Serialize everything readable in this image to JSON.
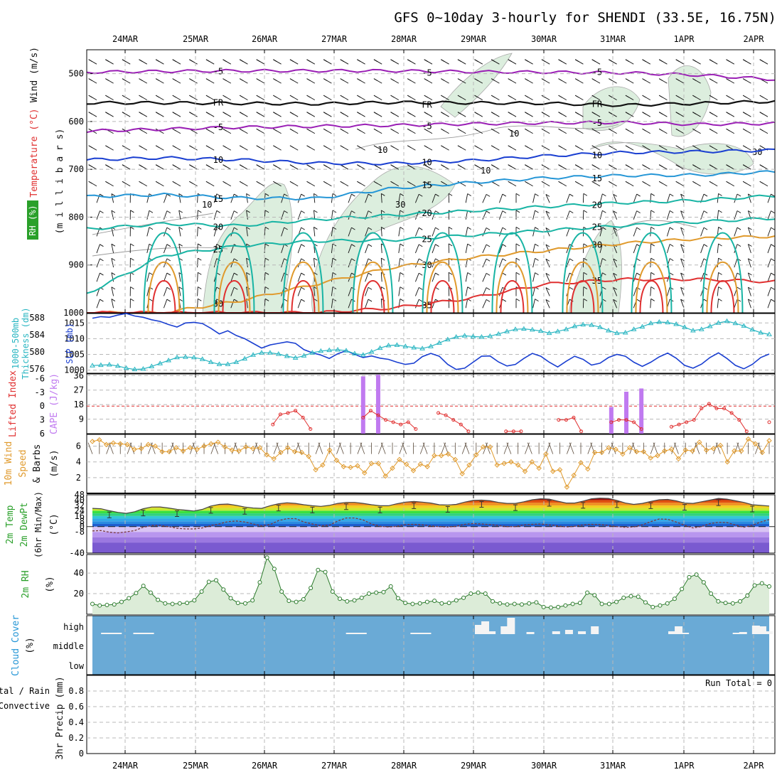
{
  "title": "GFS 0~10day 3-hourly for SHENDI (33.5E, 16.75N)",
  "colors": {
    "purple": "#9a1fb5",
    "blue": "#1a3fd1",
    "lightblue": "#2596d6",
    "teal": "#18b4a4",
    "orange": "#e09a2c",
    "red": "#e03030",
    "green": "#2aa02a",
    "cyan": "#2ab6c2",
    "cloud": "#6aaad6",
    "cape": "#c07af0",
    "gray": "#9a9a9a"
  },
  "chart_data": [
    {
      "id": "upper_air",
      "type": "contour",
      "x_dates": [
        "24MAR",
        "25MAR",
        "26MAR",
        "27MAR",
        "28MAR",
        "29MAR",
        "30MAR",
        "31MAR",
        "1APR",
        "2APR"
      ],
      "ylabel_parts": [
        "Wind (m/s)",
        "Temperature (°C)",
        "RH (%)",
        "(m i l l i b a r s)"
      ],
      "y_ticks": [
        500,
        600,
        700,
        800,
        900,
        1000
      ],
      "ylim": [
        450,
        1000
      ],
      "temperature_contours": [
        {
          "value": -5,
          "label": "-5",
          "levels_mb": [
            497,
            495,
            494,
            494,
            494,
            496,
            497,
            498,
            503,
            512
          ]
        },
        {
          "value": 0,
          "label": "FR",
          "levels_mb": [
            561,
            561,
            562,
            563,
            560,
            561,
            562,
            566,
            562,
            558
          ]
        },
        {
          "value": -5,
          "label": "-5",
          "levels_mb": [
            620,
            616,
            612,
            610,
            608,
            605,
            603,
            602,
            606,
            604
          ]
        },
        {
          "value": 10,
          "label": "10",
          "levels_mb": [
            680,
            676,
            680,
            687,
            688,
            682,
            672,
            665,
            663,
            660
          ]
        },
        {
          "value": 15,
          "label": "15",
          "levels_mb": [
            757,
            753,
            760,
            761,
            740,
            728,
            718,
            713,
            712,
            705
          ]
        },
        {
          "value": 20,
          "label": "20",
          "levels_mb": [
            825,
            814,
            818,
            805,
            796,
            787,
            778,
            770,
            765,
            755
          ]
        },
        {
          "value": 25,
          "label": "25",
          "levels_mb": [
            960,
            880,
            860,
            850,
            848,
            838,
            828,
            818,
            810,
            802
          ]
        },
        {
          "value": 30,
          "label": "30",
          "levels_mb": [
            1000,
            1000,
            975,
            940,
            905,
            885,
            870,
            855,
            845,
            840
          ]
        },
        {
          "value": 35,
          "label": "35",
          "levels_mb": [
            1000,
            1000,
            1000,
            1000,
            990,
            970,
            940,
            930,
            930,
            935
          ]
        }
      ],
      "rh_labels": [
        "10",
        "10",
        "30",
        "10",
        "10",
        "30"
      ]
    },
    {
      "id": "thickness_slp",
      "type": "line",
      "ylabel_parts": [
        "1000-500mb",
        "Thickness (dm)",
        "SLP (mb)"
      ],
      "left_ticks": [
        576,
        580,
        584,
        588
      ],
      "left_lim": [
        575,
        589
      ],
      "right_ticks": [
        1000,
        1005,
        1010,
        1015
      ],
      "right_lim": [
        999,
        1018
      ],
      "series": [
        {
          "name": "SLP",
          "values": [
            1016.5,
            1017.0,
            1016.8,
            1017.5,
            1018.0,
            1017.2,
            1016.8,
            1016.0,
            1015.5,
            1014.5,
            1013.7,
            1015.0,
            1015.2,
            1014.8,
            1013.3,
            1011.5,
            1012.5,
            1011.0,
            1010.0,
            1008.5,
            1007.0,
            1008.0,
            1008.5,
            1009.0,
            1008.5,
            1006.5,
            1005.5,
            1004.8,
            1003.7,
            1005.2,
            1006.2,
            1005.0,
            1004.0,
            1004.5,
            1003.8,
            1003.4,
            1002.5,
            1001.8,
            1002.2,
            1004.3,
            1005.3,
            1004.4,
            1001.8,
            1000.2,
            1000.6,
            1002.5,
            1004.4,
            1004.5,
            1002.6,
            1001.3,
            1001.8,
            1003.7,
            1005.3,
            1004.4,
            1002.5,
            1001.0,
            1002.8,
            1004.4,
            1003.4,
            1001.6,
            1002.2,
            1004.0,
            1005.0,
            1004.4,
            1002.5,
            1001.2,
            1002.5,
            1004.2,
            1005.4,
            1003.8,
            1001.5,
            1000.6,
            1001.9,
            1004.0,
            1005.5,
            1003.7,
            1001.5,
            1000.4,
            1001.8,
            1004.0,
            1005.1
          ]
        },
        {
          "name": "Thickness",
          "values": [
            576.8,
            576.9,
            577.0,
            576.7,
            576.2,
            575.9,
            576.0,
            576.6,
            577.3,
            578.0,
            578.7,
            578.8,
            578.7,
            578.3,
            577.6,
            577.1,
            577.1,
            577.6,
            578.4,
            579.3,
            579.8,
            579.8,
            579.5,
            579.0,
            578.6,
            579.1,
            579.8,
            580.2,
            580.4,
            580.5,
            580.3,
            579.6,
            579.3,
            580.0,
            580.9,
            581.5,
            581.6,
            581.3,
            581.0,
            580.8,
            581.3,
            582.1,
            582.9,
            583.5,
            583.8,
            583.6,
            583.5,
            583.7,
            584.2,
            584.8,
            585.3,
            585.4,
            585.2,
            584.9,
            584.4,
            584.8,
            585.3,
            586.0,
            586.4,
            586.3,
            585.8,
            585.0,
            584.4,
            584.5,
            585.3,
            585.9,
            586.7,
            587.0,
            586.9,
            586.5,
            585.8,
            585.0,
            585.3,
            586.0,
            586.8,
            587.2,
            586.7,
            586.1,
            585.2,
            584.5,
            584.1
          ]
        }
      ]
    },
    {
      "id": "cape_li",
      "type": "bar+line",
      "ylabel_parts": [
        "Lifted Index",
        "CAPE (J/kg)"
      ],
      "left_ticks": [
        "-6",
        "-3",
        "0",
        "3",
        "6"
      ],
      "left_values": [
        -6,
        -3,
        0,
        3,
        6
      ],
      "right_ticks": [
        9,
        18,
        27,
        36
      ],
      "cape_lim": [
        0,
        37
      ],
      "cape_bars": [
        {
          "step": 36,
          "value": 35.5
        },
        {
          "step": 38,
          "value": 36.5
        },
        {
          "step": 69,
          "value": 16.5
        },
        {
          "step": 71,
          "value": 26.0
        },
        {
          "step": 73,
          "value": 28.0
        }
      ],
      "lifted_index": [
        null,
        null,
        null,
        null,
        null,
        null,
        null,
        null,
        null,
        null,
        null,
        null,
        null,
        null,
        null,
        null,
        null,
        null,
        null,
        null,
        null,
        null,
        null,
        null,
        4.0,
        1.8,
        1.5,
        1.0,
        2.5,
        5.0,
        null,
        null,
        null,
        null,
        null,
        null,
        2.5,
        1.0,
        2.0,
        3.0,
        3.5,
        4.0,
        3.5,
        5.0,
        null,
        null,
        1.5,
        2.0,
        3.0,
        4.0,
        5.5,
        null,
        null,
        null,
        null,
        5.5,
        5.5,
        5.5,
        null,
        null,
        null,
        null,
        3.0,
        3.0,
        2.5,
        5.5,
        null,
        null,
        null,
        3.5,
        3.0,
        3.0,
        3.5,
        5.0,
        null,
        null,
        null,
        4.5,
        4.0,
        3.5,
        3.0,
        0.5,
        -0.5,
        0.5,
        0.5,
        1.5,
        3.0,
        5.5,
        null,
        null,
        3.5
      ]
    },
    {
      "id": "wind10m",
      "type": "line",
      "ylabel_parts": [
        "10m Wind",
        "Speed",
        "& Barbs",
        "(m/s)"
      ],
      "y_ticks": [
        2,
        4,
        6
      ],
      "ylim": [
        0,
        7.5
      ],
      "series": [
        {
          "name": "speed",
          "values": [
            6.6,
            6.8,
            6.2,
            6.4,
            6.3,
            6.2,
            5.6,
            5.7,
            6.2,
            6.0,
            5.3,
            5.3,
            5.8,
            5.4,
            5.8,
            5.6,
            6.0,
            6.3,
            6.5,
            5.9,
            5.5,
            5.4,
            5.9,
            5.7,
            5.8,
            4.9,
            4.4,
            5.2,
            5.8,
            5.3,
            5.2,
            4.7,
            3.0,
            3.6,
            5.5,
            4.2,
            3.4,
            3.3,
            3.5,
            2.6,
            3.8,
            3.8,
            2.2,
            3.2,
            4.3,
            3.7,
            2.9,
            3.7,
            3.4,
            4.8,
            4.8,
            5.0,
            4.3,
            2.5,
            3.6,
            4.9,
            5.9,
            5.9,
            3.6,
            3.8,
            4.0,
            3.6,
            2.8,
            4.0,
            3.2,
            5.0,
            2.8,
            3.0,
            0.8,
            2.3,
            3.9,
            3.1,
            5.2,
            5.2,
            5.8,
            5.6,
            5.0,
            5.8,
            5.3,
            5.3,
            4.5,
            4.8,
            5.4,
            5.6,
            4.4,
            5.5,
            5.4,
            6.5,
            5.5,
            5.7,
            6.1,
            4.0,
            5.4,
            5.4,
            6.9,
            6.3,
            5.2,
            6.7
          ]
        }
      ]
    },
    {
      "id": "temp2m",
      "type": "area+line",
      "ylabel_parts": [
        "2m Temp",
        "2m DewPt",
        "(6hr Min/Max)",
        "(°C)"
      ],
      "y_ticks": [
        "-40",
        "-8",
        "0",
        "8",
        "16",
        "24",
        "32",
        "40",
        "48"
      ],
      "ylim": [
        -40,
        48
      ],
      "series": [
        {
          "name": "temp",
          "values": [
            27.5,
            27.0,
            24.0,
            21.5,
            20.0,
            22.5,
            27.0,
            29.5,
            29.7,
            28.0,
            26.0,
            24.8,
            23.5,
            26.0,
            31.0,
            33.5,
            34.0,
            32.0,
            29.5,
            28.0,
            27.5,
            31.5,
            34.5,
            36.0,
            35.0,
            33.0,
            31.5,
            30.5,
            32.0,
            35.0,
            36.5,
            36.5,
            35.0,
            33.0,
            31.5,
            31.5,
            34.5,
            37.0,
            38.0,
            37.0,
            35.5,
            33.0,
            32.5,
            33.5,
            37.0,
            39.5,
            40.0,
            39.0,
            36.5,
            35.0,
            35.0,
            37.5,
            40.5,
            42.0,
            41.5,
            38.5,
            35.5,
            35.5,
            38.5,
            42.0,
            43.0,
            42.5,
            39.5,
            35.5,
            33.5,
            35.0,
            38.0,
            40.5,
            41.0,
            39.0,
            35.5,
            35.0,
            37.5,
            40.0,
            42.5,
            41.5,
            39.0,
            36.5,
            33.0,
            32.0,
            31.0
          ]
        },
        {
          "name": "dewpoint",
          "values": [
            -6.5,
            -6.0,
            -8.5,
            -9.5,
            -8.0,
            -6.0,
            -1.0,
            1.5,
            1.5,
            0.0,
            -2.5,
            -3.5,
            -3.5,
            -2.0,
            1.5,
            4.0,
            7.5,
            8.5,
            7.0,
            4.0,
            1.0,
            3.0,
            9.0,
            12.0,
            12.0,
            7.0,
            4.0,
            1.0,
            2.0,
            8.5,
            13.0,
            13.0,
            10.0,
            4.0,
            0.5,
            -0.5,
            0.5,
            3.0,
            3.5,
            2.5,
            1.0,
            0.0,
            -0.5,
            0.5,
            3.5,
            4.5,
            4.0,
            3.0,
            1.5,
            0.0,
            0.0,
            2.5,
            3.5,
            4.0,
            2.5,
            1.0,
            -0.5,
            0.5,
            2.5,
            3.5,
            3.0,
            1.5,
            0.0,
            -1.0,
            -0.5,
            2.5,
            7.5,
            11.5,
            11.0,
            7.0,
            2.0,
            -2.0,
            0.0,
            4.5,
            6.5,
            6.0,
            2.5,
            -1.0,
            2.0,
            7.0,
            10.5
          ]
        }
      ]
    },
    {
      "id": "rh2m",
      "type": "area+line",
      "ylabel_parts": [
        "2m RH",
        "(%)"
      ],
      "y_ticks": [
        20,
        40
      ],
      "ylim": [
        0,
        58
      ],
      "series": [
        {
          "name": "rh",
          "values": [
            10.0,
            8.5,
            9.0,
            9.5,
            12.0,
            15.5,
            20.5,
            27.5,
            21.0,
            14.0,
            10.5,
            10.0,
            10.5,
            11.0,
            13.5,
            22.0,
            31.5,
            33.0,
            24.0,
            15.5,
            11.0,
            10.5,
            13.5,
            31.0,
            55.0,
            44.0,
            22.0,
            13.0,
            12.0,
            14.5,
            25.5,
            43.0,
            41.0,
            22.0,
            15.0,
            12.5,
            13.5,
            16.0,
            20.0,
            21.0,
            21.5,
            27.0,
            15.5,
            11.0,
            10.0,
            10.5,
            12.0,
            13.0,
            10.5,
            11.0,
            13.5,
            16.0,
            20.0,
            21.0,
            20.0,
            12.5,
            10.5,
            9.5,
            10.0,
            9.5,
            10.5,
            11.5,
            7.0,
            6.5,
            7.0,
            8.5,
            10.0,
            11.0,
            21.0,
            18.5,
            10.0,
            10.0,
            12.0,
            16.0,
            17.5,
            17.0,
            11.5,
            7.0,
            8.5,
            10.5,
            15.0,
            24.5,
            36.0,
            38.5,
            31.0,
            20.0,
            12.5,
            11.0,
            10.5,
            12.5,
            18.0,
            28.0,
            30.0,
            27.0
          ]
        }
      ]
    },
    {
      "id": "cloud",
      "type": "bar",
      "ylabel_parts": [
        "Cloud Cover",
        "(%)"
      ],
      "y_ticks": [
        "high",
        "middle",
        "low"
      ],
      "high_cloud": [
        0,
        0,
        1,
        1,
        1,
        0,
        0,
        1,
        1,
        1,
        0,
        0,
        0,
        0,
        0,
        0,
        0,
        0,
        0,
        0,
        0,
        0,
        0,
        0,
        0,
        0,
        0,
        0,
        0,
        0,
        0,
        0,
        0,
        0,
        0,
        0,
        0,
        0,
        0,
        0,
        1,
        1,
        1,
        0,
        0,
        0,
        0,
        0,
        0,
        0,
        1,
        1,
        1,
        0,
        0,
        0,
        0,
        0,
        0,
        0,
        12,
        17,
        3,
        0,
        10,
        22,
        0,
        0,
        2,
        0,
        0,
        0,
        3,
        0,
        5,
        0,
        3,
        0,
        10,
        0,
        0,
        0,
        0,
        0,
        0,
        0,
        0,
        0,
        0,
        0,
        3,
        10,
        1,
        0,
        0,
        0,
        0,
        0,
        0,
        0,
        1,
        2,
        0,
        11,
        10,
        3
      ]
    },
    {
      "id": "precip",
      "type": "bar",
      "ylabel_parts": [
        "Total / Rain",
        "Convective",
        "3hr Precip (mm)"
      ],
      "y_ticks": [
        "0",
        "0.2",
        "0.4",
        "0.6",
        "0.8"
      ],
      "ylim": [
        0,
        1.0
      ],
      "run_total_label": "Run Total = 0",
      "values": []
    }
  ]
}
